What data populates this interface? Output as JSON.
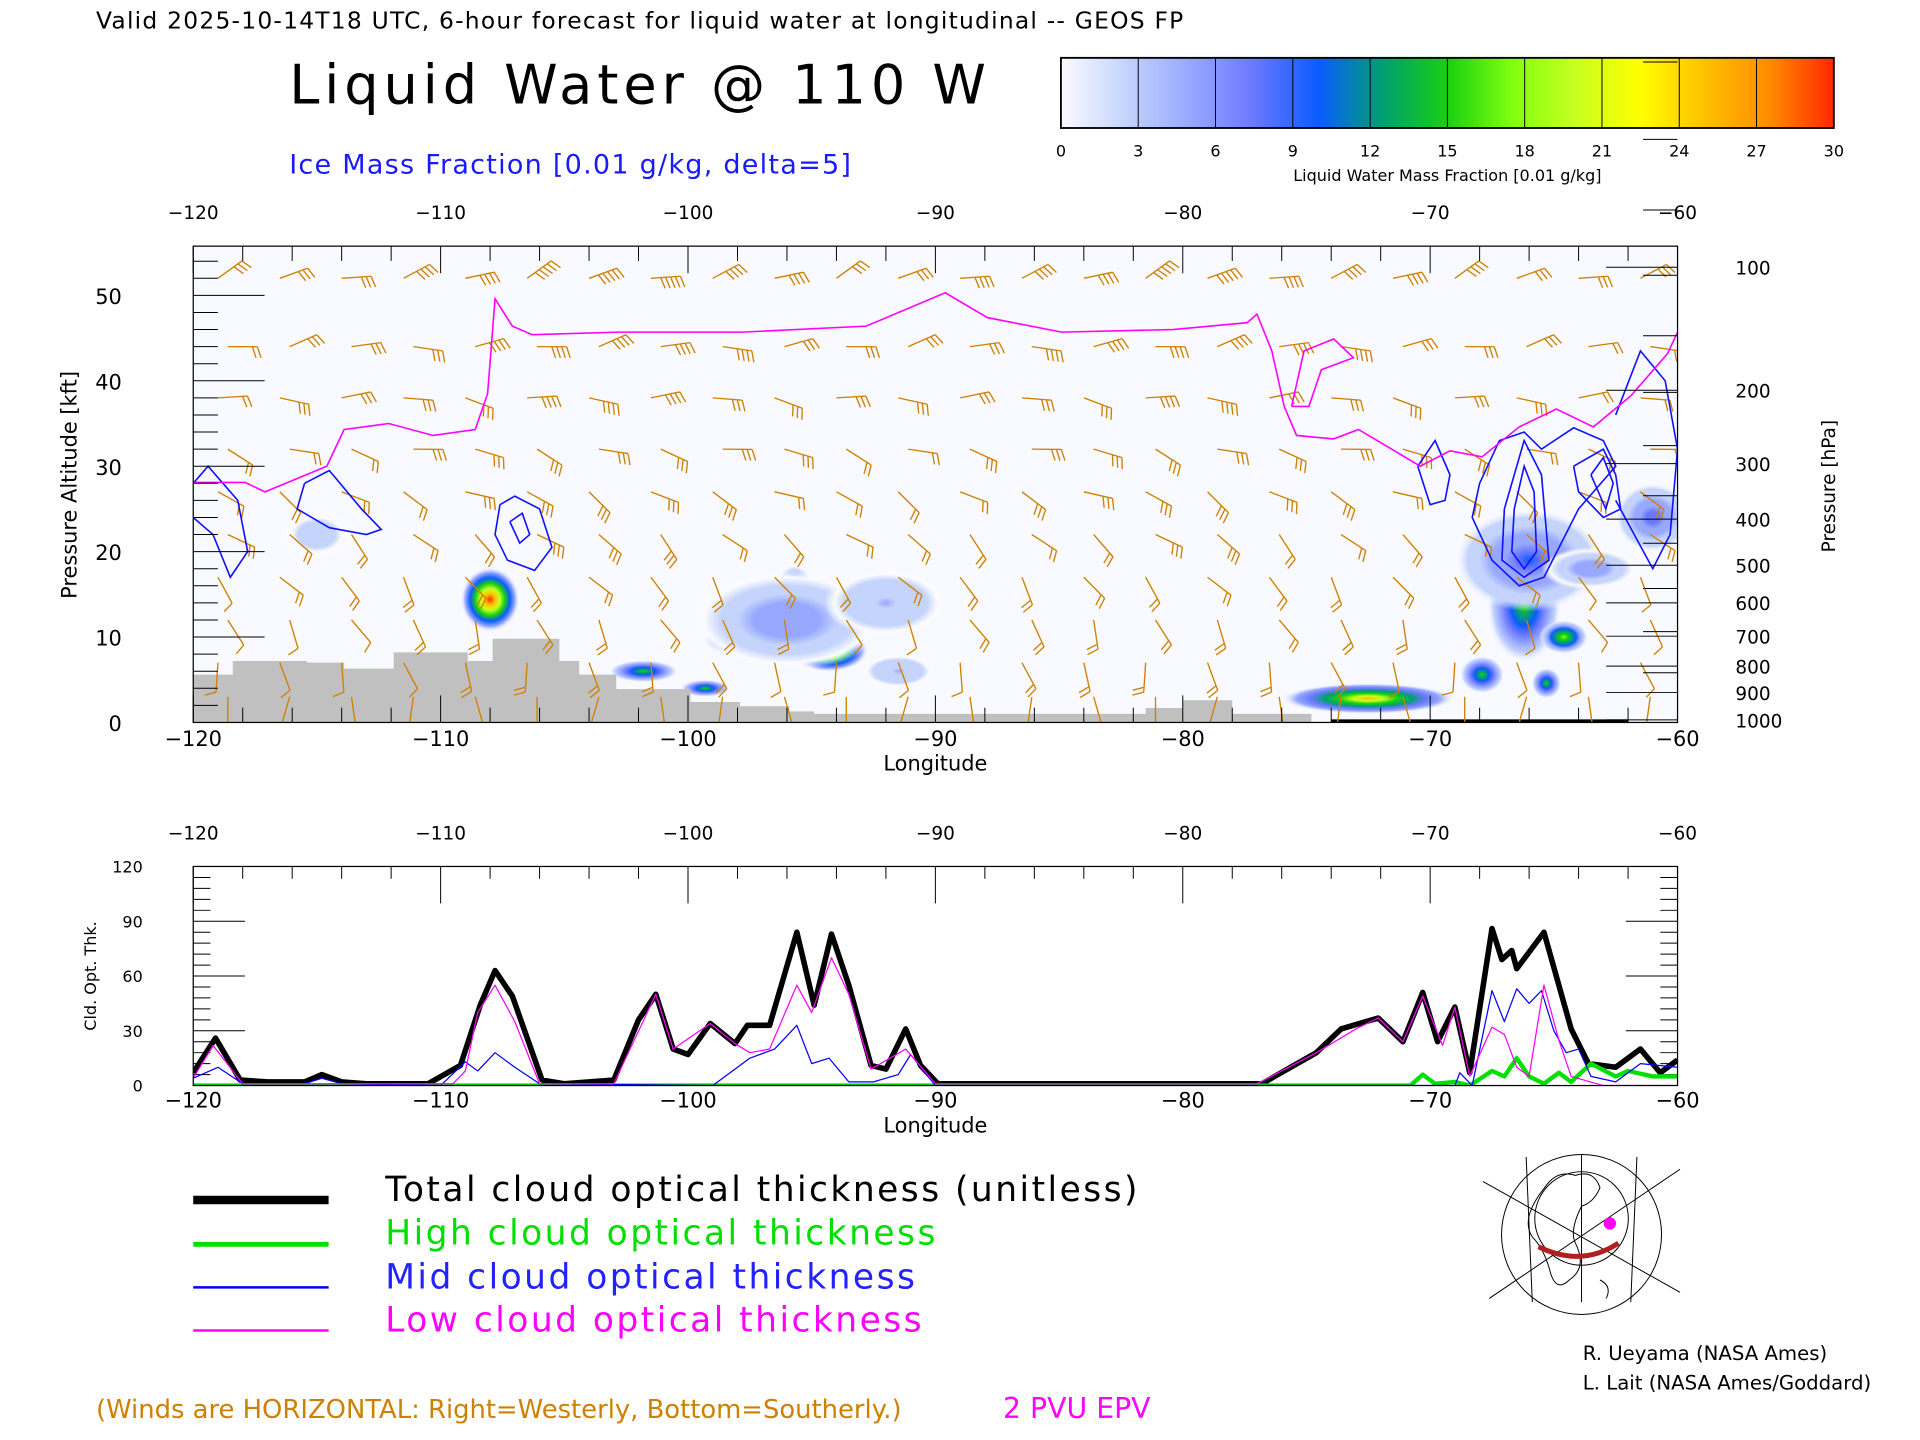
{
  "header": {
    "title": "Valid 2025-10-14T18 UTC, 6-hour forecast for liquid water at longitudinal -- GEOS FP",
    "main_title": "Liquid Water @ 110 W",
    "ice_label": "Ice Mass Fraction [0.01 g/kg, delta=5]"
  },
  "colorbar": {
    "label": "Liquid Water Mass Fraction [0.01 g/kg]",
    "ticks": [
      "0",
      "3",
      "6",
      "9",
      "12",
      "15",
      "18",
      "21",
      "24",
      "27",
      "30"
    ],
    "range": [
      0,
      30
    ],
    "colors": [
      "#fbfbff",
      "#c4d4fc",
      "#98a8ff",
      "#6a78ff",
      "#0a5cff",
      "#00a070",
      "#18d010",
      "#80ff10",
      "#c8ff20",
      "#ffff00",
      "#ffc000",
      "#ff8c00",
      "#ff2800"
    ]
  },
  "colors": {
    "wind": "#d08000",
    "epv": "#ff00ff",
    "ice": "#1010ff",
    "terrain": "#c0c0c0",
    "total": "#000000",
    "high": "#00e000",
    "mid": "#0000ff",
    "low": "#ff00ff",
    "track": "#b02020"
  },
  "chart_data": [
    {
      "type": "heatmap",
      "title": "Liquid Water @ 110 W",
      "xlabel": "Longitude",
      "ylabel": "Pressure Altitude [kft]",
      "y2label": "Pressure [hPa]",
      "xlim": [
        -120,
        -60
      ],
      "ylim": [
        0,
        55.8
      ],
      "x_ticks": [
        "-120",
        "-110",
        "-100",
        "-90",
        "-80",
        "-70",
        "-60"
      ],
      "x_tick_values": [
        -120,
        -110,
        -100,
        -90,
        -80,
        -70,
        -60
      ],
      "y_ticks": [
        "0",
        "10",
        "20",
        "30",
        "40",
        "50"
      ],
      "y_tick_values": [
        0,
        10,
        20,
        30,
        40,
        50
      ],
      "pressure_ticks": [
        "100",
        "200",
        "300",
        "400",
        "500",
        "600",
        "700",
        "800",
        "900",
        "1000"
      ],
      "pressure_tick_kft": [
        53.3,
        38.9,
        30.3,
        23.8,
        18.4,
        14.0,
        10.1,
        6.6,
        3.5,
        0.3
      ],
      "liquid_water_cells": [
        {
          "lon": -108.0,
          "kft": 14.4,
          "value": 30,
          "lon_halfwidth": 1.2,
          "kft_halfheight": 3.8
        },
        {
          "lon": -95.7,
          "kft": 15.4,
          "value": 18,
          "lon_halfwidth": 0.8,
          "kft_halfheight": 3.0
        },
        {
          "lon": -94.3,
          "kft": 8.5,
          "value": 27,
          "lon_halfwidth": 1.6,
          "kft_halfheight": 2.6
        },
        {
          "lon": -98.0,
          "kft": 9.7,
          "value": 14,
          "lon_halfwidth": 1.4,
          "kft_halfheight": 1.8
        },
        {
          "lon": -96.0,
          "kft": 12.0,
          "value": 6,
          "lon_halfwidth": 4.0,
          "kft_halfheight": 6.0
        },
        {
          "lon": -101.8,
          "kft": 6.0,
          "value": 16,
          "lon_halfwidth": 1.4,
          "kft_halfheight": 1.3
        },
        {
          "lon": -99.3,
          "kft": 4.0,
          "value": 15,
          "lon_halfwidth": 1.0,
          "kft_halfheight": 1.0
        },
        {
          "lon": -72.5,
          "kft": 2.8,
          "value": 24,
          "lon_halfwidth": 3.5,
          "kft_halfheight": 1.8
        },
        {
          "lon": -66.2,
          "kft": 13.5,
          "value": 16,
          "lon_halfwidth": 1.5,
          "kft_halfheight": 6.5
        },
        {
          "lon": -64.6,
          "kft": 10.0,
          "value": 18,
          "lon_halfwidth": 1.0,
          "kft_halfheight": 2.0
        },
        {
          "lon": -67.9,
          "kft": 5.6,
          "value": 16,
          "lon_halfwidth": 0.9,
          "kft_halfheight": 2.2
        },
        {
          "lon": -65.3,
          "kft": 4.6,
          "value": 15,
          "lon_halfwidth": 0.6,
          "kft_halfheight": 1.8
        },
        {
          "lon": -66.0,
          "kft": 19.0,
          "value": 9,
          "lon_halfwidth": 3.0,
          "kft_halfheight": 6.0
        },
        {
          "lon": -63.5,
          "kft": 18.0,
          "value": 6,
          "lon_halfwidth": 2.0,
          "kft_halfheight": 2.5
        },
        {
          "lon": -61.0,
          "kft": 24.0,
          "value": 8,
          "lon_halfwidth": 1.5,
          "kft_halfheight": 4.0
        },
        {
          "lon": -92.0,
          "kft": 14.0,
          "value": 4,
          "lon_halfwidth": 2.5,
          "kft_halfheight": 4.0
        },
        {
          "lon": -91.5,
          "kft": 6.0,
          "value": 4,
          "lon_halfwidth": 1.5,
          "kft_halfheight": 2.0
        },
        {
          "lon": -115.0,
          "kft": 22.0,
          "value": 3,
          "lon_halfwidth": 1.5,
          "kft_halfheight": 3.0
        }
      ],
      "ice_contours": [
        {
          "lon": [
            -120,
            -119.4,
            -118.2,
            -117.8,
            -118.5,
            -119.2,
            -120
          ],
          "kft": [
            28,
            30,
            26,
            20,
            17,
            22,
            24
          ]
        },
        {
          "lon": [
            -115.5,
            -114.5,
            -113.2,
            -112.4,
            -113,
            -114.5,
            -115.8,
            -115.5
          ],
          "kft": [
            28,
            29.5,
            25,
            22.6,
            22,
            22.8,
            25,
            28
          ]
        },
        {
          "lon": [
            -107.6,
            -107,
            -106,
            -105.5,
            -106.2,
            -107.3,
            -107.8,
            -107.6
          ],
          "kft": [
            25.5,
            26.5,
            25,
            20.5,
            17.8,
            19,
            22,
            25.5
          ]
        },
        {
          "lon": [
            -107.2,
            -106.7,
            -106.4,
            -106.8,
            -107.2
          ],
          "kft": [
            23.5,
            24.5,
            22,
            21,
            23.5
          ]
        },
        {
          "lon": [
            -68,
            -67.2,
            -66.2,
            -65.5,
            -64.2,
            -63,
            -62.5,
            -64,
            -65.4,
            -66.4,
            -67.5,
            -68.3,
            -68
          ],
          "kft": [
            28,
            33,
            34,
            32,
            34.5,
            33,
            30,
            25,
            17,
            16,
            19,
            24,
            28
          ]
        },
        {
          "lon": [
            -67,
            -66.2,
            -65.5,
            -65.2,
            -66.2,
            -67.1,
            -67
          ],
          "kft": [
            25,
            33,
            29,
            19,
            17,
            19,
            25
          ]
        },
        {
          "lon": [
            -66.6,
            -66.2,
            -65.8,
            -65.7,
            -66.2,
            -66.7,
            -66.6
          ],
          "kft": [
            25,
            30,
            27,
            20,
            18,
            20,
            25
          ]
        },
        {
          "lon": [
            -64.2,
            -63,
            -62.5,
            -62.3,
            -63,
            -64,
            -64.2
          ],
          "kft": [
            30,
            32,
            29,
            25,
            24,
            27,
            30
          ]
        },
        {
          "lon": [
            -63.5,
            -63,
            -62.6,
            -62.9,
            -63.5
          ],
          "kft": [
            29,
            31,
            28,
            25,
            29
          ]
        },
        {
          "lon": [
            -62.5,
            -61.5,
            -60.5,
            -60,
            -60.3,
            -61,
            -62.5
          ],
          "kft": [
            36,
            43.5,
            40,
            32,
            22,
            18,
            26
          ]
        },
        {
          "lon": [
            -70.5,
            -69.8,
            -69.2,
            -69.4,
            -70,
            -70.5
          ],
          "kft": [
            30,
            33,
            29,
            26,
            25.5,
            30
          ]
        }
      ],
      "epv_2pvu": {
        "lon": [
          -120,
          -117.9,
          -117.1,
          -114.6,
          -113.9,
          -112.1,
          -110.3,
          -108.6,
          -108.1,
          -107.8,
          -107.1,
          -106.3,
          -102.8,
          -97.8,
          -92.8,
          -89.6,
          -87.9,
          -84.9,
          -80.4,
          -77.4,
          -77,
          -76.4,
          -75.9,
          -75.4,
          -73.9,
          -72.9,
          -71.9,
          -70.4,
          -69.2,
          -67.9,
          -66.4,
          -64.9,
          -63.4,
          -61.9,
          -60.4,
          -60
        ],
        "kft": [
          28.1,
          28.1,
          27,
          30,
          34.3,
          35,
          33.6,
          34.3,
          38.5,
          49.6,
          46.4,
          45.4,
          45.7,
          45.7,
          46.4,
          50.3,
          47.4,
          45.7,
          46,
          46.8,
          47.8,
          43.5,
          37,
          33.6,
          33.2,
          34.3,
          32.6,
          30,
          31.8,
          31.1,
          34.6,
          36.7,
          34.6,
          38.2,
          43.2,
          45.7
        ]
      },
      "epv_2pvu_loop": {
        "lon": [
          -75.6,
          -75.1,
          -73.9,
          -73.1,
          -74.4,
          -74.9,
          -75.6
        ],
        "kft": [
          37,
          43.5,
          44.9,
          42.7,
          41.3,
          37,
          37
        ]
      },
      "terrain_kft": {
        "lon": [
          -120,
          -118.4,
          -115.4,
          -113.9,
          -111.9,
          -108.9,
          -107.9,
          -105.2,
          -104.4,
          -102.9,
          -99.9,
          -97.9,
          -95.9,
          -94.9,
          -81.5,
          -80,
          -78,
          -74.8,
          -60
        ],
        "kft": [
          5.6,
          7.2,
          7.0,
          6.3,
          8.2,
          7.2,
          9.8,
          7.2,
          5.6,
          3.9,
          2.4,
          1.9,
          1.3,
          1.0,
          1.7,
          2.6,
          1.0,
          0,
          0
        ]
      },
      "wind_barbs": {
        "lons": [
          -119,
          -116.5,
          -114,
          -111.5,
          -109,
          -106.5,
          -104,
          -101.5,
          -99,
          -96.5,
          -94,
          -91.5,
          -89,
          -86.5,
          -84,
          -81.5,
          -79,
          -76.5,
          -74,
          -71.5,
          -69,
          -66.5,
          -64,
          -61.5
        ],
        "kft": [
          52,
          44,
          38,
          32,
          27,
          22,
          17,
          12,
          7,
          3
        ],
        "speed_kt_upper": [
          25,
          30,
          30,
          35,
          40,
          45,
          45,
          45,
          40,
          35,
          30,
          30,
          35,
          40,
          40,
          45,
          45,
          40,
          40,
          35,
          35,
          30,
          25,
          25
        ],
        "direction": "westerly aloft, southerly near surface"
      }
    },
    {
      "type": "line",
      "xlabel": "Longitude",
      "ylabel": "Cld. Opt. Thk.",
      "xlim": [
        -120,
        -60
      ],
      "ylim": [
        0,
        120
      ],
      "x_ticks": [
        "-120",
        "-110",
        "-100",
        "-90",
        "-80",
        "-70",
        "-60"
      ],
      "x_tick_values": [
        -120,
        -110,
        -100,
        -90,
        -80,
        -70,
        -60
      ],
      "y_ticks": [
        "0",
        "30",
        "60",
        "90",
        "120"
      ],
      "y_tick_values": [
        0,
        30,
        60,
        90,
        120
      ],
      "series": [
        {
          "name": "Total cloud optical thickness (unitless)",
          "key": "total",
          "lon": [
            -120,
            -119.1,
            -118.1,
            -117,
            -115.5,
            -114.8,
            -114,
            -113,
            -110.5,
            -109.2,
            -108.4,
            -107.8,
            -107.1,
            -105.9,
            -105,
            -103,
            -102,
            -101.3,
            -100.6,
            -100,
            -99.1,
            -98.1,
            -97.6,
            -96.7,
            -95.6,
            -94.9,
            -94.2,
            -93.5,
            -92.6,
            -92,
            -91.2,
            -90.6,
            -89.9,
            -77,
            -76.8,
            -74.6,
            -73.6,
            -72.1,
            -71.1,
            -70.3,
            -69.7,
            -69,
            -68.4,
            -67.5,
            -67.1,
            -66.7,
            -66.5,
            -65.4,
            -64.3,
            -63.6,
            -62.5,
            -61.5,
            -60.7,
            -60
          ],
          "values": [
            7,
            26,
            3,
            2,
            2,
            6,
            2,
            1,
            1,
            11,
            44,
            63,
            49,
            3,
            1,
            3,
            36,
            50,
            20,
            17,
            34,
            23,
            33,
            33,
            84,
            44,
            83,
            55,
            11,
            9,
            31,
            11,
            1,
            1,
            1,
            18,
            31,
            37,
            24,
            51,
            24,
            43,
            7,
            86,
            69,
            74,
            64,
            84,
            31,
            12,
            10,
            20,
            7,
            14
          ]
        },
        {
          "name": "High cloud optical thickness",
          "key": "high",
          "lon": [
            -120,
            -70.8,
            -70.3,
            -69.8,
            -69,
            -68.4,
            -67.5,
            -67,
            -66.5,
            -66,
            -65.4,
            -64.8,
            -64.3,
            -63.5,
            -62.5,
            -62,
            -61,
            -60
          ],
          "values": [
            0,
            0,
            6,
            1,
            2,
            0,
            8,
            5,
            15,
            5,
            1,
            7,
            2,
            12,
            5,
            8,
            5,
            5
          ]
        },
        {
          "name": "Mid cloud optical thickness",
          "key": "mid",
          "lon": [
            -120,
            -119,
            -118,
            -115.5,
            -114.8,
            -114,
            -110,
            -109,
            -108.5,
            -107.8,
            -107,
            -106,
            -99,
            -97.5,
            -96.5,
            -95.6,
            -95,
            -94.3,
            -93.5,
            -92.5,
            -91.5,
            -91,
            -90,
            -69,
            -68.8,
            -68.3,
            -67.5,
            -67,
            -66.5,
            -66,
            -65.5,
            -65,
            -64.5,
            -64,
            -63.5,
            -62.5,
            -61.5,
            -60
          ],
          "values": [
            4,
            10,
            1,
            1,
            4,
            1,
            0,
            13,
            8,
            18,
            10,
            1,
            0,
            15,
            20,
            33,
            12,
            15,
            2,
            2,
            6,
            17,
            0,
            0,
            7,
            0,
            52,
            35,
            53,
            45,
            52,
            30,
            18,
            20,
            5,
            2,
            12,
            10
          ]
        },
        {
          "name": "Low cloud optical thickness",
          "key": "low",
          "lon": [
            -120,
            -119.2,
            -118,
            -109.5,
            -109,
            -108.5,
            -107.8,
            -107,
            -106,
            -103,
            -101.3,
            -100.6,
            -99.1,
            -98.1,
            -97.5,
            -96.7,
            -95.6,
            -95,
            -94.2,
            -93.5,
            -92.6,
            -91.2,
            -90,
            -77,
            -74.6,
            -73,
            -72.1,
            -71.1,
            -70.3,
            -69.5,
            -69,
            -68.4,
            -67.5,
            -67,
            -66.5,
            -66,
            -65.4,
            -64.8,
            -64.3,
            -63,
            -60
          ],
          "values": [
            4,
            22,
            1,
            1,
            8,
            40,
            55,
            35,
            1,
            1,
            50,
            20,
            34,
            23,
            18,
            20,
            55,
            40,
            70,
            50,
            9,
            20,
            1,
            1,
            18,
            31,
            37,
            24,
            49,
            22,
            43,
            5,
            32,
            28,
            10,
            5,
            55,
            25,
            5,
            0,
            0
          ]
        }
      ]
    }
  ],
  "legend": {
    "total": "Total cloud optical thickness (unitless)",
    "high": "High cloud optical thickness",
    "mid": "Mid cloud optical thickness",
    "low": "Low cloud optical thickness"
  },
  "footer": {
    "winds_note": "(Winds are HORIZONTAL: Right=Westerly, Bottom=Southerly.)",
    "epv_label": "2 PVU EPV",
    "credit_1": "R. Ueyama (NASA Ames)",
    "credit_2": "L. Lait (NASA Ames/Goddard)"
  }
}
